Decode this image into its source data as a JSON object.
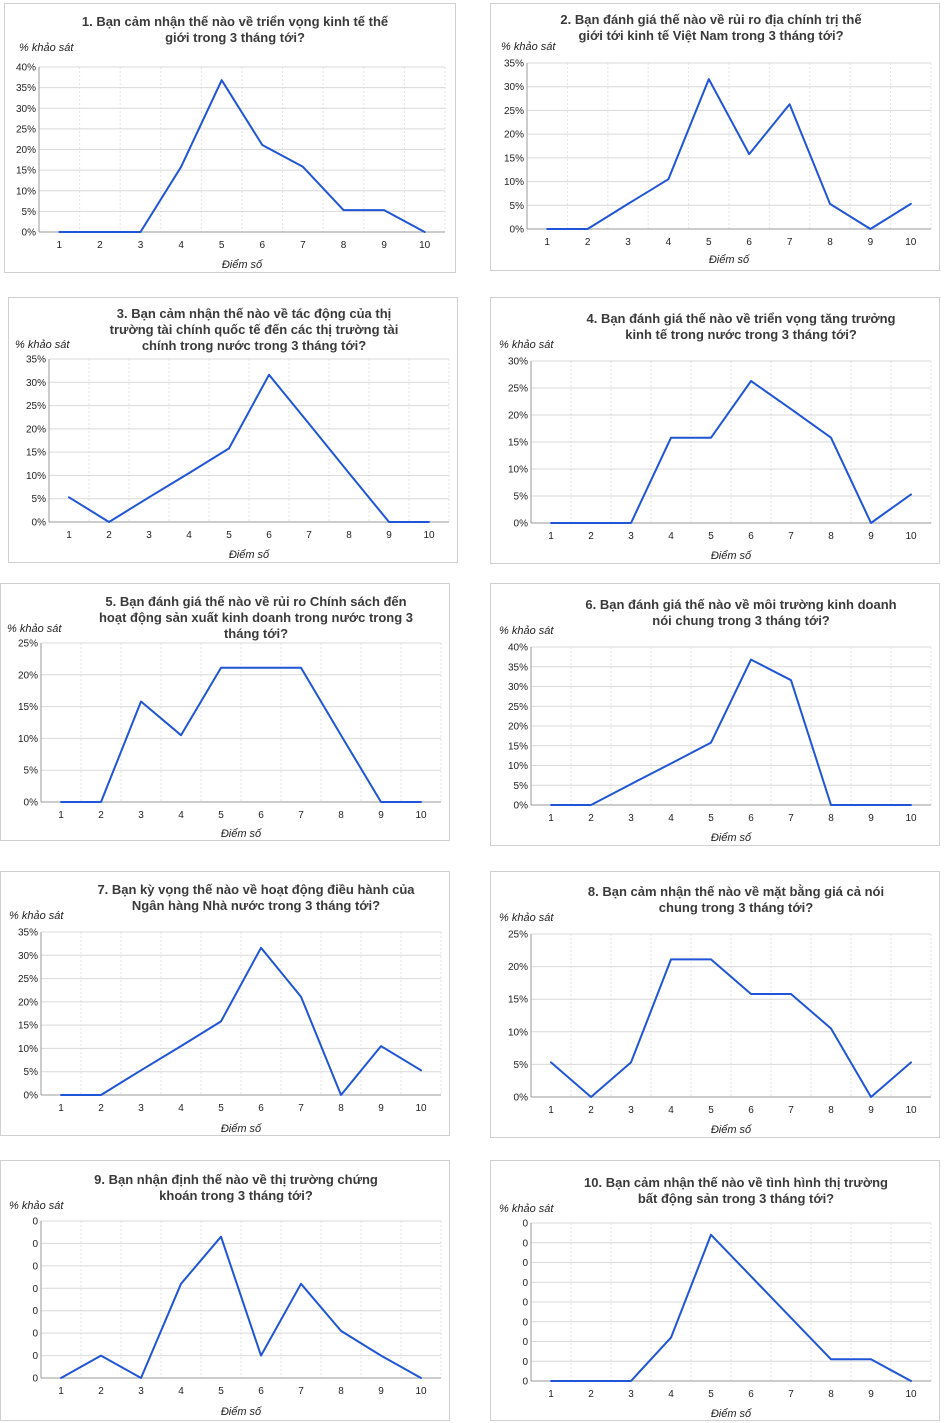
{
  "colors": {
    "line": "#1f55d6",
    "grid": "#e3e3e3",
    "axis": "#9a9a9a",
    "border": "#d0d0d0",
    "text": "#3a3a3a"
  },
  "chart_data": [
    {
      "type": "line",
      "title_lines": [
        "1. Bạn cảm nhận thế nào về triển vọng kinh tế thế",
        "giới trong 3 tháng tới?"
      ],
      "ylabel": "% khảo sát",
      "xlabel": "Điểm số",
      "x": [
        1,
        2,
        3,
        4,
        5,
        6,
        7,
        8,
        9,
        10
      ],
      "values": [
        0,
        0,
        0,
        15.8,
        36.8,
        21.1,
        15.8,
        5.3,
        5.3,
        0
      ],
      "ylim": [
        0,
        40
      ],
      "ytick_labels": [
        "0%",
        "5%",
        "10%",
        "15%",
        "20%",
        "25%",
        "30%",
        "35%",
        "40%"
      ]
    },
    {
      "type": "line",
      "title_lines": [
        "2. Bạn đánh giá thế nào về rủi ro địa chính trị thế",
        "giới tới kinh tế Việt Nam trong 3 tháng tới?"
      ],
      "ylabel": "% khảo sát",
      "xlabel": "Điểm số",
      "x": [
        1,
        2,
        3,
        4,
        5,
        6,
        7,
        8,
        9,
        10
      ],
      "values": [
        0,
        0,
        5.3,
        10.5,
        31.6,
        15.8,
        26.3,
        5.3,
        0,
        5.3
      ],
      "ylim": [
        0,
        35
      ],
      "ytick_labels": [
        "0%",
        "5%",
        "10%",
        "15%",
        "20%",
        "25%",
        "30%",
        "35%"
      ]
    },
    {
      "type": "line",
      "title_lines": [
        "3. Bạn cảm nhận thế nào về tác động của thị",
        "trường tài chính quốc tế đến các thị trường tài",
        "chính trong nước trong 3 tháng tới?"
      ],
      "ylabel": "% khảo sát",
      "xlabel": "Điểm số",
      "x": [
        1,
        2,
        3,
        4,
        5,
        6,
        7,
        8,
        9,
        10
      ],
      "values": [
        5.3,
        0,
        5.3,
        10.5,
        15.8,
        31.6,
        21.1,
        10.5,
        0,
        0
      ],
      "ylim": [
        0,
        35
      ],
      "ytick_labels": [
        "0%",
        "5%",
        "10%",
        "15%",
        "20%",
        "25%",
        "30%",
        "35%"
      ]
    },
    {
      "type": "line",
      "title_lines": [
        "4. Bạn đánh giá thế nào về triển vọng tăng trưởng",
        "kinh tế trong nước trong 3 tháng tới?"
      ],
      "ylabel": "% khảo sát",
      "xlabel": "Điểm số",
      "x": [
        1,
        2,
        3,
        4,
        5,
        6,
        7,
        8,
        9,
        10
      ],
      "values": [
        0,
        0,
        0,
        15.8,
        15.8,
        26.3,
        21.1,
        15.8,
        0,
        5.3
      ],
      "ylim": [
        0,
        30
      ],
      "ytick_labels": [
        "0%",
        "5%",
        "10%",
        "15%",
        "20%",
        "25%",
        "30%"
      ]
    },
    {
      "type": "line",
      "title_lines": [
        "5. Bạn đánh giá thế nào về rủi ro Chính sách đến",
        "hoạt động sản xuất kinh doanh trong nước trong 3",
        "tháng tới?"
      ],
      "ylabel": "% khảo sát",
      "xlabel": "Điểm số",
      "x": [
        1,
        2,
        3,
        4,
        5,
        6,
        7,
        8,
        9,
        10
      ],
      "values": [
        0,
        0,
        15.8,
        10.5,
        21.1,
        21.1,
        21.1,
        10.5,
        0,
        0
      ],
      "ylim": [
        0,
        25
      ],
      "ytick_labels": [
        "0%",
        "5%",
        "10%",
        "15%",
        "20%",
        "25%"
      ]
    },
    {
      "type": "line",
      "title_lines": [
        "6. Bạn đánh giá thế nào về môi trường kinh doanh",
        "nói chung trong 3 tháng tới?"
      ],
      "ylabel": "% khảo sát",
      "xlabel": "Điểm số",
      "x": [
        1,
        2,
        3,
        4,
        5,
        6,
        7,
        8,
        9,
        10
      ],
      "values": [
        0,
        0,
        5.3,
        10.5,
        15.8,
        36.8,
        31.6,
        0,
        0,
        0
      ],
      "ylim": [
        0,
        40
      ],
      "ytick_labels": [
        "0%",
        "5%",
        "10%",
        "15%",
        "20%",
        "25%",
        "30%",
        "35%",
        "40%"
      ]
    },
    {
      "type": "line",
      "title_lines": [
        "7. Bạn kỳ vọng thế nào về hoạt động điều hành của",
        "Ngân hàng Nhà nước trong 3 tháng tới?"
      ],
      "ylabel": "% khảo sát",
      "xlabel": "Điểm số",
      "x": [
        1,
        2,
        3,
        4,
        5,
        6,
        7,
        8,
        9,
        10
      ],
      "values": [
        0,
        0,
        5.3,
        10.5,
        15.8,
        31.6,
        21.1,
        0,
        10.5,
        5.3
      ],
      "ylim": [
        0,
        35
      ],
      "ytick_labels": [
        "0%",
        "5%",
        "10%",
        "15%",
        "20%",
        "25%",
        "30%",
        "35%"
      ]
    },
    {
      "type": "line",
      "title_lines": [
        "8. Bạn cảm nhận thế nào về mặt bằng giá cả nói",
        "chung trong 3 tháng tới?"
      ],
      "ylabel": "% khảo sát",
      "xlabel": "Điểm số",
      "x": [
        1,
        2,
        3,
        4,
        5,
        6,
        7,
        8,
        9,
        10
      ],
      "values": [
        5.3,
        0,
        5.3,
        21.1,
        21.1,
        15.8,
        15.8,
        10.5,
        0,
        5.3
      ],
      "ylim": [
        0,
        25
      ],
      "ytick_labels": [
        "0%",
        "5%",
        "10%",
        "15%",
        "20%",
        "25%"
      ]
    },
    {
      "type": "line",
      "title_lines": [
        "9. Bạn nhận định thế nào về thị trường chứng",
        "khoán trong 3 tháng tới?"
      ],
      "ylabel": "% khảo sát",
      "xlabel": "Điểm số",
      "x": [
        1,
        2,
        3,
        4,
        5,
        6,
        7,
        8,
        9,
        10
      ],
      "values": [
        0,
        1,
        0,
        4.2,
        6.3,
        1,
        4.2,
        2.1,
        1,
        0
      ],
      "ylim": [
        0,
        7
      ],
      "ytick_labels": [
        "0",
        "0",
        "0",
        "0",
        "0",
        "0",
        "0",
        "0"
      ]
    },
    {
      "type": "line",
      "title_lines": [
        "10. Bạn cảm nhận thế nào về tình hình thị trường",
        "bất động sản trong 3 tháng tới?"
      ],
      "ylabel": "% khảo sát",
      "xlabel": "Điểm số",
      "x": [
        1,
        2,
        3,
        4,
        5,
        6,
        7,
        8,
        9,
        10
      ],
      "values": [
        0,
        0,
        0,
        2.2,
        7.4,
        5.3,
        3.2,
        1.1,
        1.1,
        0
      ],
      "ylim": [
        0,
        8
      ],
      "ytick_labels": [
        "0",
        "0",
        "0",
        "0",
        "0",
        "0",
        "0",
        "0",
        "0"
      ]
    }
  ]
}
